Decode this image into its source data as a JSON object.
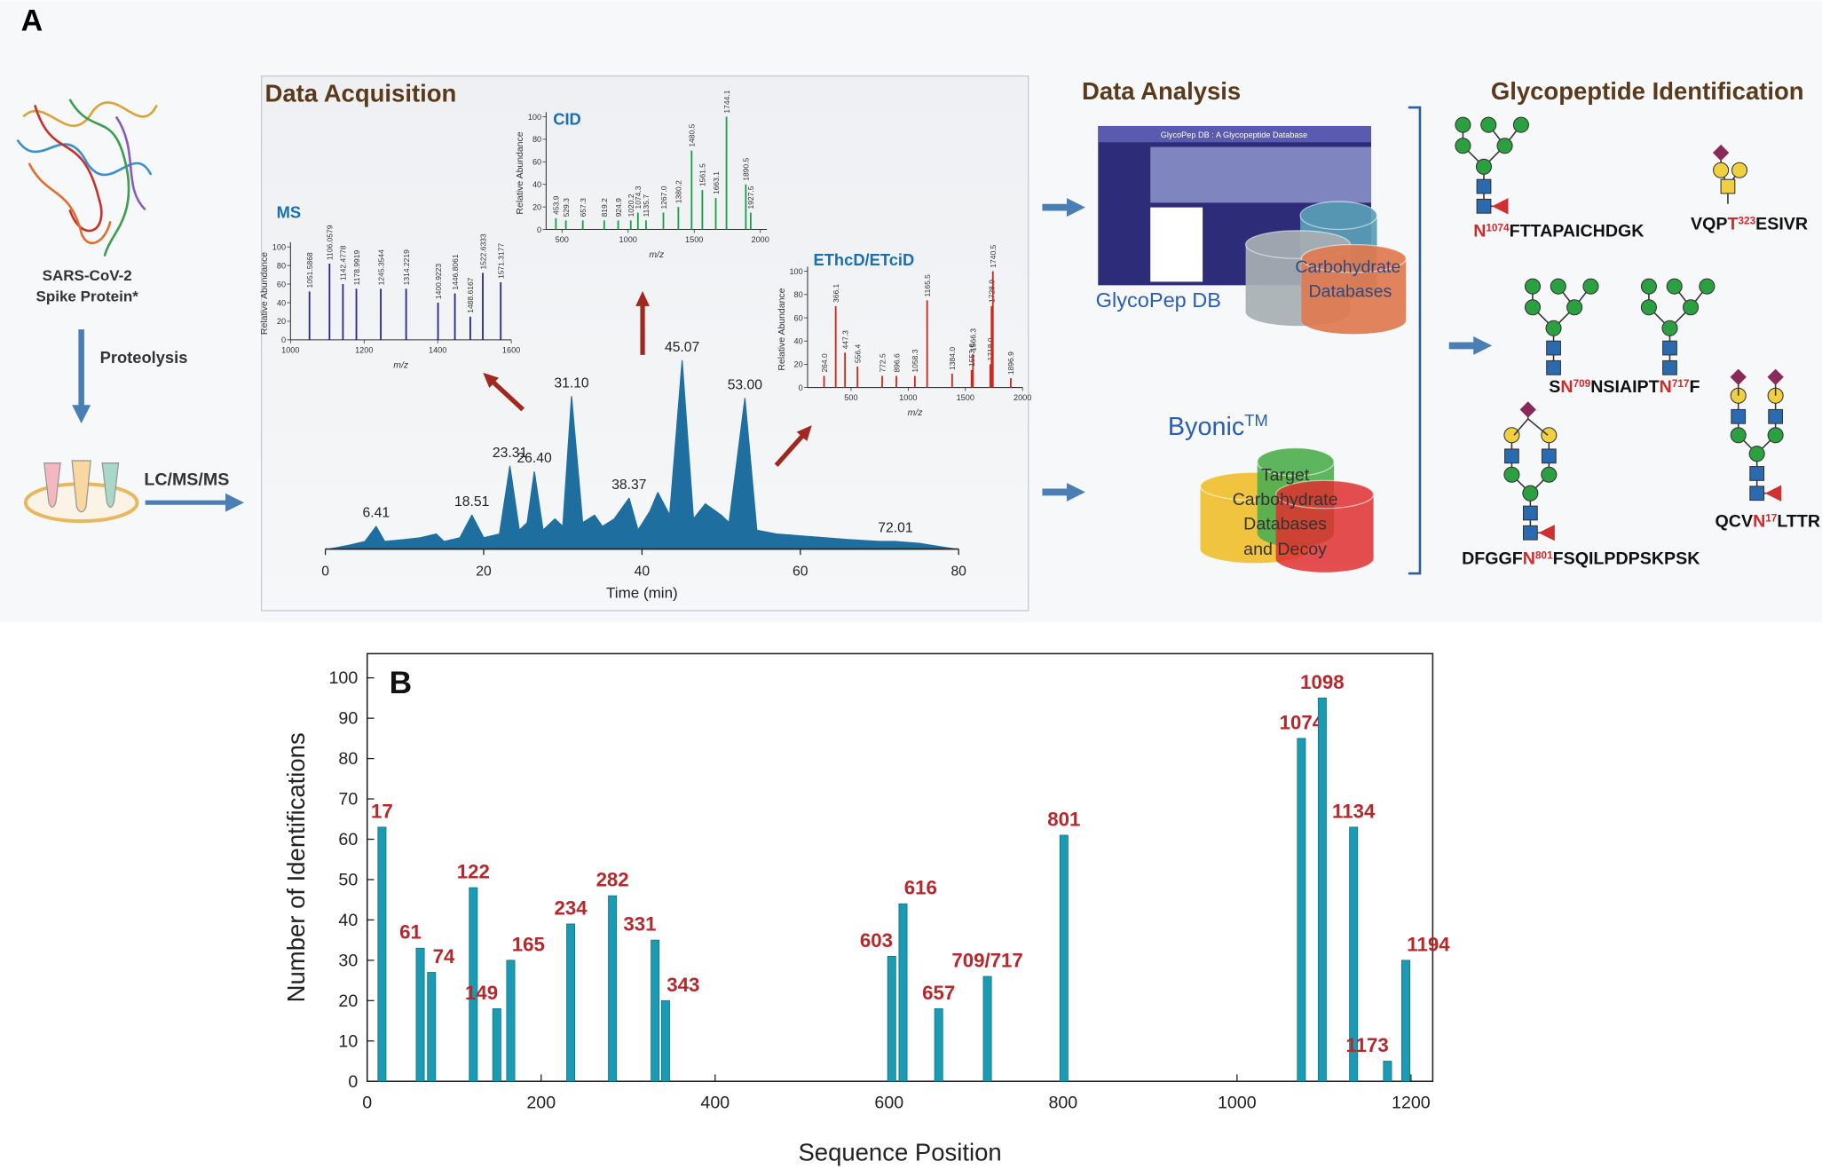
{
  "panel_a": {
    "label": "A",
    "protein": [
      "SARS-CoV-2",
      "Spike Protein*"
    ],
    "proteolysis": "Proteolysis",
    "lcms": "LC/MS/MS",
    "acquisition_title": "Data Acquisition",
    "analysis_title": "Data Analysis",
    "glycopepdb": {
      "window_title": "GlycoPep DB : A Glycopeptide Database",
      "name": "GlycoPep DB",
      "database": [
        "Carbohydrate",
        "Databases"
      ]
    },
    "byonic": {
      "name": "Byonic",
      "mark": "TM",
      "database": [
        "Target",
        "Carbohydrate",
        "Databases",
        "and Decoy"
      ]
    },
    "identification_title": "Glycopeptide Identification",
    "peptides": [
      {
        "parts": [
          {
            "text": "N",
            "red": true,
            "sup": false
          },
          {
            "text": "1074",
            "red": true,
            "sup": true
          },
          {
            "text": "FTTAPAICHDGK",
            "red": false,
            "sup": false
          }
        ]
      },
      {
        "parts": [
          {
            "text": "VQP",
            "red": false,
            "sup": false
          },
          {
            "text": "T",
            "red": true,
            "sup": false
          },
          {
            "text": "323",
            "red": true,
            "sup": true
          },
          {
            "text": "ESIVR",
            "red": false,
            "sup": false
          }
        ]
      },
      {
        "parts": [
          {
            "text": "S",
            "red": false,
            "sup": false
          },
          {
            "text": "N",
            "red": true,
            "sup": false
          },
          {
            "text": "709",
            "red": true,
            "sup": true
          },
          {
            "text": "NSIAIPT",
            "red": false,
            "sup": false
          },
          {
            "text": "N",
            "red": true,
            "sup": false
          },
          {
            "text": "717",
            "red": true,
            "sup": true
          },
          {
            "text": "F",
            "red": false,
            "sup": false
          }
        ]
      },
      {
        "parts": [
          {
            "text": "DFGGF",
            "red": false,
            "sup": false
          },
          {
            "text": "N",
            "red": true,
            "sup": false
          },
          {
            "text": "801",
            "red": true,
            "sup": true
          },
          {
            "text": "FSQILPDPSKPSK",
            "red": false,
            "sup": false
          }
        ]
      },
      {
        "parts": [
          {
            "text": "QCV",
            "red": false,
            "sup": false
          },
          {
            "text": "N",
            "red": true,
            "sup": false
          },
          {
            "text": "17",
            "red": true,
            "sup": true
          },
          {
            "text": "LTTR",
            "red": false,
            "sup": false
          }
        ]
      }
    ]
  },
  "chart_data": [
    {
      "type": "chromatogram",
      "xlabel": "Time (min)",
      "color": "#1f6ea0",
      "x": [
        0.5,
        3,
        5,
        6.41,
        7.5,
        10,
        12,
        14,
        15,
        17,
        18.51,
        20,
        22,
        23.31,
        24.5,
        25.5,
        26.4,
        27.5,
        29,
        30,
        31.1,
        32.5,
        34,
        35,
        36.5,
        38.37,
        39.5,
        41,
        42,
        43.5,
        45.07,
        46.5,
        48,
        50,
        51,
        53.0,
        54.5,
        57,
        60,
        63,
        66,
        70,
        72.01,
        75,
        79.5
      ],
      "values": [
        0,
        2,
        4,
        12,
        4,
        5,
        6,
        8,
        4,
        6,
        18,
        6,
        8,
        44,
        10,
        14,
        41,
        10,
        16,
        12,
        81,
        14,
        18,
        12,
        16,
        27,
        10,
        20,
        30,
        18,
        100,
        16,
        24,
        18,
        14,
        80,
        10,
        8,
        7,
        6,
        5,
        4,
        4,
        3,
        0
      ],
      "peak_labels": [
        null,
        null,
        null,
        "6.41",
        null,
        null,
        null,
        null,
        null,
        null,
        "18.51",
        null,
        null,
        "23.31",
        null,
        null,
        "26.40",
        null,
        null,
        null,
        "31.10",
        null,
        null,
        null,
        null,
        "38.37",
        null,
        null,
        null,
        null,
        "45.07",
        null,
        null,
        null,
        null,
        "53.00",
        null,
        null,
        null,
        null,
        null,
        null,
        "72.01",
        null,
        null
      ],
      "xlim": [
        0,
        80
      ],
      "ylim": [
        0,
        100
      ],
      "xticks": [
        0,
        20,
        40,
        60,
        80
      ]
    },
    {
      "type": "spectrum",
      "title": "MS",
      "xlabel": "m/z",
      "ylabel": "Relative Abundance",
      "color": "#2a2a8a",
      "title_color": "#1a6fb0",
      "x": [
        1051.5868,
        1106.0579,
        1142.4778,
        1178.9919,
        1245.3544,
        1314.2219,
        1400.9223,
        1446.8061,
        1488.6167,
        1522.6333,
        1571.3177
      ],
      "values": [
        52,
        82,
        60,
        55,
        55,
        55,
        40,
        50,
        25,
        72,
        62
      ],
      "peak_labels": [
        "1051.5868",
        "1106.0579",
        "1142.4778",
        "1178.9919",
        "1245.3544",
        "1314.2219",
        "1400.9223",
        "1446.8061",
        "1488.6167",
        "1522.6333",
        "1571.3177"
      ],
      "xlim": [
        1000,
        1600
      ],
      "ylim": [
        0,
        100
      ],
      "xticks": [
        1000,
        1200,
        1400,
        1600
      ],
      "yticks": [
        0,
        20,
        40,
        60,
        80,
        100
      ]
    },
    {
      "type": "spectrum",
      "title": "CID",
      "xlabel": "m/z",
      "ylabel": "Relative Abundance",
      "color": "#1aa04a",
      "title_color": "#1a6fb0",
      "x": [
        453.9,
        529.3,
        657.3,
        819.2,
        924.9,
        1020.2,
        1074.3,
        1135.7,
        1267.0,
        1380.2,
        1480.5,
        1561.5,
        1663.1,
        1744.1,
        1890.5,
        1927.5
      ],
      "values": [
        10,
        8,
        8,
        8,
        8,
        8,
        15,
        8,
        15,
        20,
        70,
        35,
        28,
        100,
        40,
        15
      ],
      "peak_labels": [
        "453.9",
        "529.3",
        "657.3",
        "819.2",
        "924.9",
        "1020.2",
        "1074.3",
        "1135.7",
        "1267.0",
        "1380.2",
        "1480.5",
        "1561.5",
        "1663.1",
        "1744.1",
        "1890.5",
        "1927.5"
      ],
      "xlim": [
        380,
        2050
      ],
      "ylim": [
        0,
        100
      ],
      "xticks": [
        500,
        1000,
        1500,
        2000
      ],
      "yticks": [
        0,
        20,
        40,
        60,
        80,
        100
      ]
    },
    {
      "type": "spectrum",
      "title": "EThcD/ETciD",
      "xlabel": "m/z",
      "ylabel": "Relative Abundance",
      "color": "#d0281e",
      "title_color": "#1a6fb0",
      "x": [
        264.0,
        366.1,
        447.3,
        556.4,
        772.5,
        896.6,
        1058.3,
        1165.5,
        1384.0,
        1553.6,
        1566.3,
        1718.0,
        1728.9,
        1740.5,
        1896.9
      ],
      "values": [
        10,
        70,
        30,
        18,
        10,
        10,
        10,
        75,
        12,
        15,
        28,
        20,
        70,
        100,
        8
      ],
      "peak_labels": [
        "264.0",
        "366.1",
        "447.3",
        "556.4",
        "772.5",
        "896.6",
        "1058.3",
        "1165.5",
        "1384.0",
        "1553.6",
        "1566.3",
        "1718.0",
        "1728.9",
        "1740.5",
        "1896.9"
      ],
      "xlim": [
        120,
        2000
      ],
      "ylim": [
        0,
        100
      ],
      "xticks": [
        500,
        1000,
        1500,
        2000
      ],
      "yticks": [
        0,
        20,
        40,
        60,
        80,
        100
      ]
    },
    {
      "type": "bar",
      "panel_label": "B",
      "xlabel": "Sequence Position",
      "ylabel": "Number of Identifications",
      "color": "#1b9bb3",
      "label_color": "#b5282b",
      "x": [
        17,
        61,
        74,
        122,
        149,
        165,
        234,
        282,
        331,
        343,
        603,
        616,
        657,
        713,
        801,
        1074,
        1098,
        1134,
        1173,
        1194
      ],
      "values": [
        63,
        33,
        27,
        48,
        18,
        30,
        39,
        46,
        35,
        20,
        31,
        44,
        18,
        26,
        61,
        85,
        95,
        63,
        5,
        30
      ],
      "labels": [
        "17",
        "61",
        "74",
        "122",
        "149",
        "165",
        "234",
        "282",
        "331",
        "343",
        "603",
        "616",
        "657",
        "709/717",
        "801",
        "1074",
        "1098",
        "1134",
        "1173",
        "1194"
      ],
      "xlim": [
        0,
        1225
      ],
      "ylim": [
        0,
        106
      ],
      "xticks": [
        0,
        200,
        400,
        600,
        800,
        1000,
        1200
      ],
      "yticks": [
        0,
        10,
        20,
        30,
        40,
        50,
        60,
        70,
        80,
        90,
        100
      ]
    }
  ]
}
